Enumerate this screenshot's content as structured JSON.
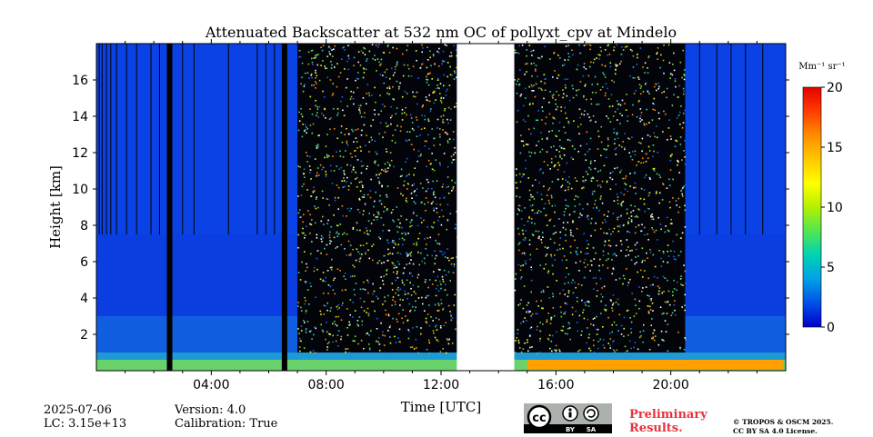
{
  "chart_data": {
    "type": "heatmap",
    "title": "Attenuated Backscatter at 532 nm OC of pollyxt_cpv at Mindelo",
    "xlabel": "Time [UTC]",
    "ylabel": "Height [km]",
    "x_range_hours": [
      0,
      24
    ],
    "ylim_km": [
      0,
      18
    ],
    "x_ticks": [
      {
        "value": 4,
        "label": "04:00"
      },
      {
        "value": 8,
        "label": "08:00"
      },
      {
        "value": 12,
        "label": "12:00"
      },
      {
        "value": 16,
        "label": "16:00"
      },
      {
        "value": 20,
        "label": "20:00"
      }
    ],
    "y_ticks": [
      {
        "value": 2,
        "label": "2"
      },
      {
        "value": 4,
        "label": "4"
      },
      {
        "value": 6,
        "label": "6"
      },
      {
        "value": 8,
        "label": "8"
      },
      {
        "value": 10,
        "label": "10"
      },
      {
        "value": 12,
        "label": "12"
      },
      {
        "value": 14,
        "label": "14"
      },
      {
        "value": 16,
        "label": "16"
      }
    ],
    "colorbar": {
      "unit_label": "Mm⁻¹ sr⁻¹",
      "range": [
        0,
        20
      ],
      "ticks": [
        {
          "value": 0,
          "label": "0"
        },
        {
          "value": 5,
          "label": "5"
        },
        {
          "value": 10,
          "label": "10"
        },
        {
          "value": 15,
          "label": "15"
        },
        {
          "value": 20,
          "label": "20"
        }
      ],
      "colors": [
        "#0000cc",
        "#0050e6",
        "#00a0e6",
        "#00d2b4",
        "#50e650",
        "#b4f000",
        "#ffff00",
        "#ffc800",
        "#ff8c00",
        "#ff3c00",
        "#e60000"
      ]
    },
    "data_gap_hours": [
      12.55,
      14.55
    ],
    "no_data_columns_hours": [
      2.55,
      6.55
    ],
    "noisy_daylight_hours": [
      [
        7.0,
        12.55
      ],
      [
        14.55,
        20.5
      ]
    ],
    "boundary_layer_top_km": 0.6,
    "aerosol_layer_km": [
      1.0,
      3.0
    ],
    "low_signal_cutoff_km": 7.5
  },
  "footer": {
    "date": "2025-07-06",
    "lc": "LC: 3.15e+13",
    "version": "Version: 4.0",
    "calibration": "Calibration: True",
    "preliminary_line1": "Preliminary",
    "preliminary_line2": "Results.",
    "license_line1": "© TROPOS & OSCM 2025.",
    "license_line2": "CC BY SA 4.0 License.",
    "cc_by": "BY",
    "cc_sa": "SA"
  }
}
